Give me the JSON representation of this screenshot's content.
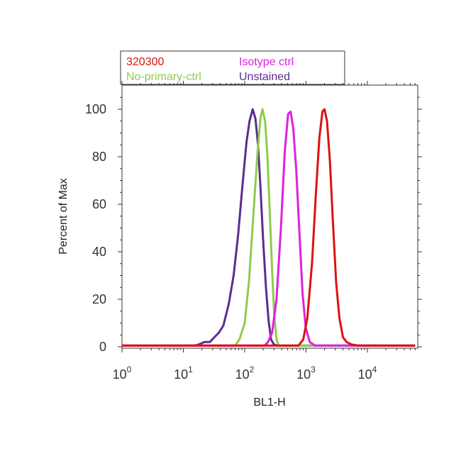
{
  "chart_data": {
    "type": "line",
    "xlabel": "BL1-H",
    "ylabel": "Percent of Max",
    "xscale": "log",
    "xlim": [
      1,
      60000
    ],
    "ylim": [
      0,
      110
    ],
    "x_ticks": [
      {
        "base": "10",
        "exp": "0",
        "value": 1
      },
      {
        "base": "10",
        "exp": "1",
        "value": 10
      },
      {
        "base": "10",
        "exp": "2",
        "value": 100
      },
      {
        "base": "10",
        "exp": "3",
        "value": 1000
      },
      {
        "base": "10",
        "exp": "4",
        "value": 10000
      }
    ],
    "y_ticks": [
      0,
      20,
      40,
      60,
      80,
      100
    ],
    "legend_position": "top",
    "series": [
      {
        "name": "Unstained",
        "color": "#5b2c91",
        "points": [
          [
            1,
            0.5
          ],
          [
            15,
            0.5
          ],
          [
            18,
            1
          ],
          [
            22,
            2
          ],
          [
            27,
            2
          ],
          [
            32,
            4
          ],
          [
            38,
            6
          ],
          [
            45,
            9
          ],
          [
            55,
            18
          ],
          [
            66,
            30
          ],
          [
            78,
            47
          ],
          [
            92,
            68
          ],
          [
            107,
            86
          ],
          [
            120,
            95
          ],
          [
            135,
            100
          ],
          [
            150,
            96
          ],
          [
            165,
            85
          ],
          [
            180,
            68
          ],
          [
            200,
            45
          ],
          [
            222,
            25
          ],
          [
            245,
            11
          ],
          [
            270,
            3
          ],
          [
            300,
            1
          ],
          [
            340,
            0.5
          ],
          [
            60000,
            0.5
          ]
        ]
      },
      {
        "name": "No-primary-ctrl",
        "color": "#8ecc4a",
        "points": [
          [
            1,
            0.5
          ],
          [
            70,
            0.5
          ],
          [
            82,
            3
          ],
          [
            100,
            10
          ],
          [
            118,
            28
          ],
          [
            138,
            55
          ],
          [
            160,
            80
          ],
          [
            180,
            96
          ],
          [
            195,
            100
          ],
          [
            215,
            95
          ],
          [
            235,
            80
          ],
          [
            255,
            58
          ],
          [
            280,
            32
          ],
          [
            305,
            12
          ],
          [
            330,
            3
          ],
          [
            360,
            0.5
          ],
          [
            60000,
            0.5
          ]
        ]
      },
      {
        "name": "Isotype ctrl",
        "color": "#dd22dd",
        "points": [
          [
            1,
            0.5
          ],
          [
            210,
            0.5
          ],
          [
            240,
            2
          ],
          [
            280,
            6
          ],
          [
            330,
            20
          ],
          [
            390,
            50
          ],
          [
            450,
            82
          ],
          [
            510,
            98
          ],
          [
            560,
            99
          ],
          [
            620,
            92
          ],
          [
            690,
            75
          ],
          [
            780,
            48
          ],
          [
            880,
            22
          ],
          [
            990,
            8
          ],
          [
            1150,
            2
          ],
          [
            1400,
            0.5
          ],
          [
            60000,
            0.5
          ]
        ]
      },
      {
        "name": "320300",
        "color": "#dd1111",
        "points": [
          [
            1,
            0.5
          ],
          [
            750,
            0.5
          ],
          [
            900,
            3
          ],
          [
            1050,
            12
          ],
          [
            1250,
            35
          ],
          [
            1450,
            65
          ],
          [
            1650,
            88
          ],
          [
            1850,
            99
          ],
          [
            2000,
            100
          ],
          [
            2200,
            95
          ],
          [
            2450,
            78
          ],
          [
            2750,
            52
          ],
          [
            3100,
            27
          ],
          [
            3500,
            12
          ],
          [
            4000,
            4
          ],
          [
            4600,
            2
          ],
          [
            5500,
            1
          ],
          [
            7000,
            0.5
          ],
          [
            60000,
            0.5
          ]
        ]
      }
    ]
  },
  "legend": [
    {
      "label": "320300",
      "color": "#dd1111"
    },
    {
      "label": "Isotype ctrl",
      "color": "#dd22dd"
    },
    {
      "label": "No-primary-ctrl",
      "color": "#8ecc4a"
    },
    {
      "label": "Unstained",
      "color": "#5b2c91"
    }
  ]
}
